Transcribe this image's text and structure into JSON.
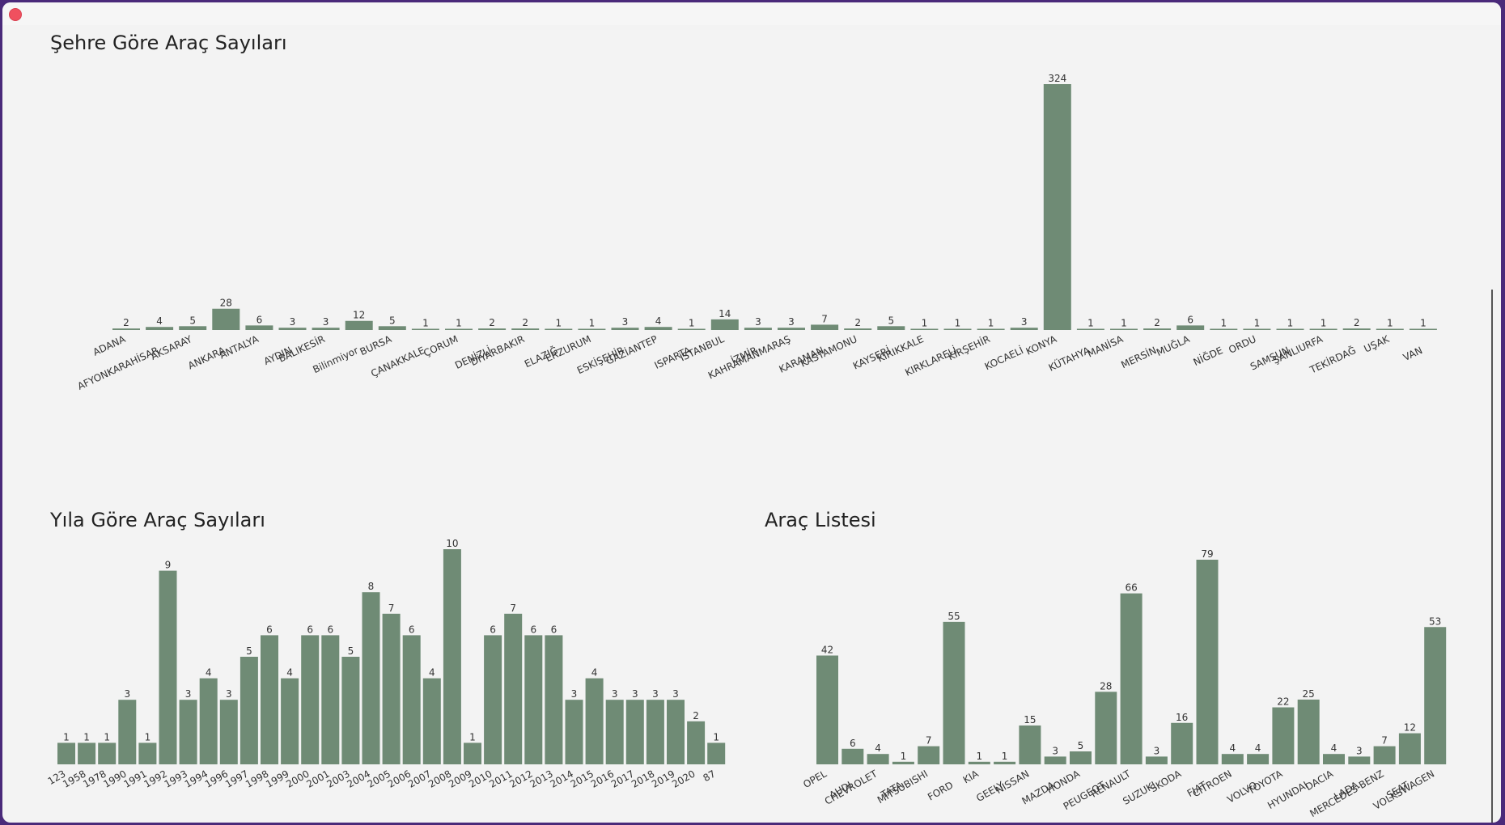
{
  "window": {
    "close_icon": "close-circle-icon"
  },
  "chart_data": [
    {
      "type": "bar",
      "title": "Şehre Göre Araç Sayıları",
      "categories": [
        "ADANA",
        "AFYONKARAHİSAR",
        "AKSARAY",
        "ANKARA",
        "ANTALYA",
        "AYDIN",
        "BALIKESİR",
        "Bilinmiyor",
        "BURSA",
        "ÇANAKKALE",
        "ÇORUM",
        "DENİZLİ",
        "DİYARBAKIR",
        "ELAZIĞ",
        "ERZURUM",
        "ESKİŞEHİR",
        "GAZİANTEP",
        "ISPARTA",
        "İSTANBUL",
        "İZMİR",
        "KAHRAMANMARAŞ",
        "KARAMAN",
        "KASTAMONU",
        "KAYSERİ",
        "KIRIKKALE",
        "KIRKLARELİ",
        "KIRŞEHİR",
        "KOCAELİ",
        "KONYA",
        "KÜTAHYA",
        "MANİSA",
        "MERSİN",
        "MUĞLA",
        "NİĞDE",
        "ORDU",
        "SAMSUN",
        "ŞANLIURFA",
        "TEKİRDAĞ",
        "UŞAK",
        "VAN"
      ],
      "values": [
        2,
        4,
        5,
        28,
        6,
        3,
        3,
        12,
        5,
        1,
        1,
        2,
        2,
        1,
        1,
        3,
        4,
        1,
        14,
        3,
        3,
        7,
        2,
        5,
        1,
        1,
        1,
        3,
        324,
        1,
        1,
        2,
        6,
        1,
        1,
        1,
        1,
        2,
        1,
        1
      ],
      "color": "#6f8b75",
      "grid": false
    },
    {
      "type": "bar",
      "title": "Yıla Göre Araç Sayıları",
      "categories": [
        "123",
        "1958",
        "1978",
        "1990",
        "1991",
        "1992",
        "1993",
        "1994",
        "1996",
        "1997",
        "1998",
        "1999",
        "2000",
        "2001",
        "2003",
        "2004",
        "2005",
        "2006",
        "2007",
        "2008",
        "2009",
        "2010",
        "2011",
        "2012",
        "2013",
        "2014",
        "2015",
        "2016",
        "2017",
        "2018",
        "2019",
        "2020",
        "87"
      ],
      "values": [
        1,
        1,
        1,
        3,
        1,
        9,
        3,
        4,
        3,
        5,
        6,
        4,
        6,
        6,
        5,
        8,
        7,
        6,
        4,
        10,
        1,
        6,
        7,
        6,
        6,
        3,
        4,
        3,
        3,
        3,
        3,
        2,
        1
      ],
      "color": "#6f8b75",
      "grid": false
    },
    {
      "type": "bar",
      "title": "Araç Listesi",
      "categories": [
        "OPEL",
        "AUDI",
        "CHEVROLET",
        "TATA",
        "MITSUBISHI",
        "FORD",
        "KIA",
        "GEELY",
        "NISSAN",
        "MAZDA",
        "HONDA",
        "PEUGEOT",
        "RENAULT",
        "SUZUKI",
        "SKODA",
        "FIAT",
        "CITROEN",
        "VOLVO",
        "TOYOTA",
        "HYUNDAI",
        "DACIA",
        "LADA",
        "MERCEDES-BENZ",
        "SEAT",
        "VOLKSWAGEN"
      ],
      "values": [
        42,
        6,
        4,
        1,
        7,
        55,
        1,
        1,
        15,
        3,
        5,
        28,
        66,
        3,
        16,
        79,
        4,
        4,
        22,
        25,
        4,
        3,
        7,
        12,
        53
      ],
      "color": "#6f8b75",
      "grid": false
    }
  ]
}
